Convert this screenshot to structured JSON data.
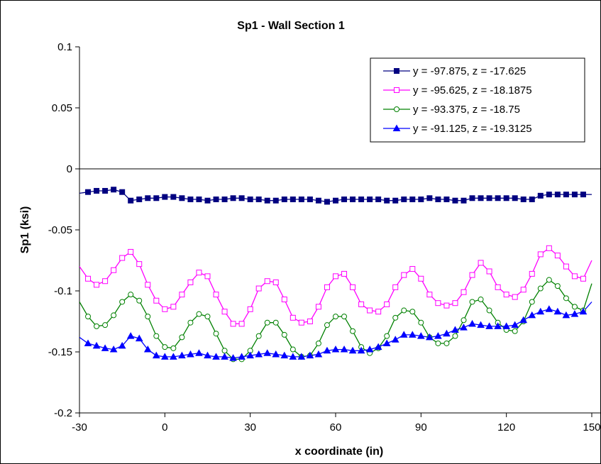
{
  "chart_data": {
    "type": "line",
    "title": "Sp1 - Wall Section 1",
    "xlabel": "x coordinate (in)",
    "ylabel": "Sp1 (ksi)",
    "xlim": [
      -30,
      150
    ],
    "ylim": [
      -0.2,
      0.1
    ],
    "xticks": [
      "-30",
      "0",
      "30",
      "60",
      "90",
      "120",
      "150"
    ],
    "yticks": [
      "0.1",
      "0.05",
      "0",
      "-0.05",
      "-0.1",
      "-0.15",
      "-0.2"
    ],
    "xtick_values": [
      -30,
      0,
      30,
      60,
      90,
      120,
      150
    ],
    "ytick_values": [
      0.1,
      0.05,
      0,
      -0.05,
      -0.1,
      -0.15,
      -0.2
    ],
    "grid": false,
    "legend_position": "top-right",
    "series": [
      {
        "name": "y = -97.875, z = -17.625",
        "color": "#000080",
        "marker": "filled-square",
        "x": [
          -30,
          -27,
          -24,
          -21,
          -18,
          -15,
          -12,
          -9,
          -6,
          -3,
          0,
          3,
          6,
          9,
          12,
          15,
          18,
          21,
          24,
          27,
          30,
          33,
          36,
          39,
          42,
          45,
          48,
          51,
          54,
          57,
          60,
          63,
          66,
          69,
          72,
          75,
          78,
          81,
          84,
          87,
          90,
          93,
          96,
          99,
          102,
          105,
          108,
          111,
          114,
          117,
          120,
          123,
          126,
          129,
          132,
          135,
          138,
          141,
          144,
          147,
          150
        ],
        "y": [
          -0.02,
          -0.019,
          -0.018,
          -0.018,
          -0.017,
          -0.019,
          -0.026,
          -0.025,
          -0.024,
          -0.024,
          -0.023,
          -0.023,
          -0.024,
          -0.025,
          -0.025,
          -0.026,
          -0.025,
          -0.025,
          -0.024,
          -0.024,
          -0.025,
          -0.025,
          -0.026,
          -0.026,
          -0.025,
          -0.025,
          -0.025,
          -0.025,
          -0.026,
          -0.027,
          -0.026,
          -0.025,
          -0.025,
          -0.025,
          -0.025,
          -0.025,
          -0.026,
          -0.026,
          -0.025,
          -0.025,
          -0.025,
          -0.024,
          -0.025,
          -0.025,
          -0.026,
          -0.026,
          -0.024,
          -0.024,
          -0.024,
          -0.024,
          -0.024,
          -0.024,
          -0.025,
          -0.025,
          -0.022,
          -0.021,
          -0.021,
          -0.021,
          -0.021,
          -0.021,
          -0.021
        ]
      },
      {
        "name": "y = -95.625, z = -18.1875",
        "color": "#FF00FF",
        "marker": "open-square",
        "x": [
          -30,
          -27,
          -24,
          -21,
          -18,
          -15,
          -12,
          -9,
          -6,
          -3,
          0,
          3,
          6,
          9,
          12,
          15,
          18,
          21,
          24,
          27,
          30,
          33,
          36,
          39,
          42,
          45,
          48,
          51,
          54,
          57,
          60,
          63,
          66,
          69,
          72,
          75,
          78,
          81,
          84,
          87,
          90,
          93,
          96,
          99,
          102,
          105,
          108,
          111,
          114,
          117,
          120,
          123,
          126,
          129,
          132,
          135,
          138,
          141,
          144,
          147,
          150
        ],
        "y": [
          -0.08,
          -0.09,
          -0.095,
          -0.092,
          -0.083,
          -0.073,
          -0.068,
          -0.078,
          -0.095,
          -0.108,
          -0.115,
          -0.113,
          -0.103,
          -0.093,
          -0.085,
          -0.088,
          -0.103,
          -0.117,
          -0.127,
          -0.127,
          -0.115,
          -0.098,
          -0.092,
          -0.093,
          -0.107,
          -0.122,
          -0.126,
          -0.125,
          -0.113,
          -0.097,
          -0.088,
          -0.086,
          -0.097,
          -0.111,
          -0.116,
          -0.117,
          -0.111,
          -0.097,
          -0.087,
          -0.082,
          -0.09,
          -0.103,
          -0.11,
          -0.112,
          -0.11,
          -0.101,
          -0.087,
          -0.077,
          -0.084,
          -0.097,
          -0.103,
          -0.105,
          -0.099,
          -0.086,
          -0.07,
          -0.065,
          -0.071,
          -0.08,
          -0.088,
          -0.09,
          -0.075
        ]
      },
      {
        "name": "y = -93.375, z = -18.75",
        "color": "#008000",
        "marker": "open-circle",
        "x": [
          -30,
          -27,
          -24,
          -21,
          -18,
          -15,
          -12,
          -9,
          -6,
          -3,
          0,
          3,
          6,
          9,
          12,
          15,
          18,
          21,
          24,
          27,
          30,
          33,
          36,
          39,
          42,
          45,
          48,
          51,
          54,
          57,
          60,
          63,
          66,
          69,
          72,
          75,
          78,
          81,
          84,
          87,
          90,
          93,
          96,
          99,
          102,
          105,
          108,
          111,
          114,
          117,
          120,
          123,
          126,
          129,
          132,
          135,
          138,
          141,
          144,
          147,
          150
        ],
        "y": [
          -0.109,
          -0.121,
          -0.129,
          -0.128,
          -0.12,
          -0.109,
          -0.103,
          -0.108,
          -0.121,
          -0.137,
          -0.146,
          -0.147,
          -0.138,
          -0.126,
          -0.119,
          -0.121,
          -0.135,
          -0.149,
          -0.156,
          -0.156,
          -0.149,
          -0.137,
          -0.126,
          -0.126,
          -0.136,
          -0.148,
          -0.154,
          -0.153,
          -0.143,
          -0.128,
          -0.121,
          -0.121,
          -0.133,
          -0.146,
          -0.151,
          -0.147,
          -0.137,
          -0.122,
          -0.116,
          -0.117,
          -0.126,
          -0.138,
          -0.143,
          -0.143,
          -0.137,
          -0.124,
          -0.109,
          -0.107,
          -0.116,
          -0.126,
          -0.132,
          -0.133,
          -0.125,
          -0.109,
          -0.098,
          -0.091,
          -0.096,
          -0.106,
          -0.113,
          -0.116,
          -0.094
        ]
      },
      {
        "name": "y = -91.125, z = -19.3125",
        "color": "#0000FF",
        "marker": "filled-triangle",
        "x": [
          -30,
          -27,
          -24,
          -21,
          -18,
          -15,
          -12,
          -9,
          -6,
          -3,
          0,
          3,
          6,
          9,
          12,
          15,
          18,
          21,
          24,
          27,
          30,
          33,
          36,
          39,
          42,
          45,
          48,
          51,
          54,
          57,
          60,
          63,
          66,
          69,
          72,
          75,
          78,
          81,
          84,
          87,
          90,
          93,
          96,
          99,
          102,
          105,
          108,
          111,
          114,
          117,
          120,
          123,
          126,
          129,
          132,
          135,
          138,
          141,
          144,
          147,
          150
        ],
        "y": [
          -0.138,
          -0.143,
          -0.145,
          -0.147,
          -0.148,
          -0.145,
          -0.137,
          -0.139,
          -0.148,
          -0.153,
          -0.154,
          -0.154,
          -0.153,
          -0.152,
          -0.151,
          -0.153,
          -0.154,
          -0.154,
          -0.155,
          -0.154,
          -0.153,
          -0.152,
          -0.151,
          -0.152,
          -0.153,
          -0.154,
          -0.154,
          -0.153,
          -0.152,
          -0.149,
          -0.148,
          -0.148,
          -0.149,
          -0.149,
          -0.148,
          -0.146,
          -0.143,
          -0.14,
          -0.136,
          -0.136,
          -0.137,
          -0.138,
          -0.137,
          -0.135,
          -0.132,
          -0.13,
          -0.127,
          -0.128,
          -0.129,
          -0.129,
          -0.129,
          -0.128,
          -0.124,
          -0.12,
          -0.117,
          -0.115,
          -0.117,
          -0.12,
          -0.119,
          -0.117,
          -0.109
        ]
      }
    ]
  }
}
